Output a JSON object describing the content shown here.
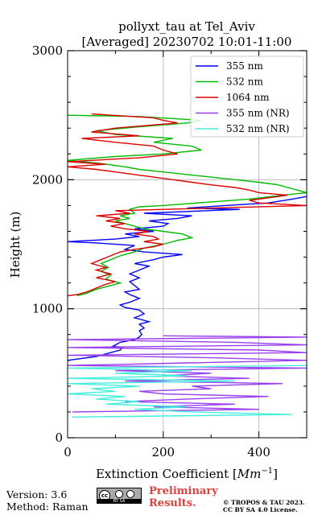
{
  "chart_data": {
    "type": "line",
    "title": [
      "pollyxt_tau at Tel_Aviv",
      "[Averaged] 20230702 10:01-11:00"
    ],
    "xlabel_text": "Extinction Coefficient [",
    "xlabel_unit": "Mm",
    "xlabel_exp": "−1",
    "xlabel_close": "]",
    "ylabel": "Height (m)",
    "xlim": [
      0,
      500
    ],
    "ylim": [
      0,
      3000
    ],
    "x_ticks": [
      "0",
      "200",
      "400"
    ],
    "y_ticks": [
      "0",
      "1000",
      "2000",
      "3000"
    ],
    "x_tick_values": [
      0,
      200,
      400
    ],
    "y_tick_values": [
      0,
      1000,
      2000,
      3000
    ],
    "x_minor_values": [
      100,
      300,
      500
    ],
    "y_minor_values": [
      200,
      400,
      600,
      800,
      1200,
      1400,
      1600,
      1800,
      2200,
      2400,
      2600,
      2800
    ],
    "grid": true,
    "legend_position": "top-right",
    "series": [
      {
        "name": "355 nm",
        "color": "#0000ff",
        "points": [
          [
            0,
            600
          ],
          [
            60,
            630
          ],
          [
            90,
            660
          ],
          [
            110,
            680
          ],
          [
            115,
            700
          ],
          [
            95,
            710
          ],
          [
            110,
            740
          ],
          [
            140,
            760
          ],
          [
            150,
            780
          ],
          [
            155,
            800
          ],
          [
            150,
            830
          ],
          [
            160,
            850
          ],
          [
            150,
            880
          ],
          [
            170,
            900
          ],
          [
            140,
            930
          ],
          [
            160,
            960
          ],
          [
            150,
            990
          ],
          [
            120,
            1010
          ],
          [
            110,
            1030
          ],
          [
            130,
            1050
          ],
          [
            150,
            1080
          ],
          [
            130,
            1110
          ],
          [
            120,
            1130
          ],
          [
            150,
            1150
          ],
          [
            140,
            1180
          ],
          [
            130,
            1210
          ],
          [
            150,
            1240
          ],
          [
            130,
            1270
          ],
          [
            150,
            1300
          ],
          [
            170,
            1330
          ],
          [
            140,
            1350
          ],
          [
            180,
            1380
          ],
          [
            200,
            1400
          ],
          [
            240,
            1420
          ],
          [
            160,
            1440
          ],
          [
            120,
            1460
          ],
          [
            140,
            1490
          ],
          [
            60,
            1510
          ],
          [
            0,
            1520
          ],
          [
            100,
            1540
          ],
          [
            150,
            1560
          ],
          [
            120,
            1580
          ],
          [
            180,
            1600
          ],
          [
            140,
            1620
          ],
          [
            200,
            1640
          ],
          [
            210,
            1660
          ],
          [
            170,
            1680
          ],
          [
            230,
            1700
          ],
          [
            260,
            1720
          ],
          [
            160,
            1740
          ],
          [
            360,
            1770
          ],
          [
            250,
            1780
          ],
          [
            330,
            1800
          ],
          [
            420,
            1820
          ],
          [
            470,
            1850
          ],
          [
            500,
            1870
          ]
        ]
      },
      {
        "name": "532 nm",
        "color": "#00bb00",
        "points": [
          [
            20,
            1100
          ],
          [
            40,
            1120
          ],
          [
            60,
            1150
          ],
          [
            90,
            1180
          ],
          [
            110,
            1200
          ],
          [
            80,
            1230
          ],
          [
            90,
            1260
          ],
          [
            70,
            1290
          ],
          [
            85,
            1320
          ],
          [
            70,
            1350
          ],
          [
            90,
            1380
          ],
          [
            110,
            1410
          ],
          [
            140,
            1440
          ],
          [
            160,
            1470
          ],
          [
            200,
            1500
          ],
          [
            230,
            1530
          ],
          [
            260,
            1550
          ],
          [
            240,
            1580
          ],
          [
            200,
            1600
          ],
          [
            160,
            1620
          ],
          [
            130,
            1650
          ],
          [
            100,
            1680
          ],
          [
            130,
            1700
          ],
          [
            110,
            1720
          ],
          [
            140,
            1740
          ],
          [
            130,
            1770
          ],
          [
            150,
            1790
          ],
          [
            200,
            1800
          ],
          [
            380,
            1850
          ],
          [
            450,
            1880
          ],
          [
            500,
            1900
          ],
          [
            480,
            1920
          ],
          [
            460,
            1940
          ],
          [
            440,
            1960
          ],
          [
            400,
            1980
          ],
          [
            350,
            2000
          ],
          [
            300,
            2020
          ],
          [
            250,
            2040
          ],
          [
            200,
            2060
          ],
          [
            150,
            2080
          ],
          [
            120,
            2100
          ],
          [
            60,
            2130
          ],
          [
            0,
            2150
          ],
          [
            100,
            2180
          ],
          [
            200,
            2200
          ],
          [
            280,
            2230
          ],
          [
            260,
            2260
          ],
          [
            180,
            2290
          ],
          [
            220,
            2320
          ],
          [
            100,
            2350
          ],
          [
            60,
            2380
          ],
          [
            150,
            2410
          ],
          [
            250,
            2440
          ],
          [
            280,
            2460
          ],
          [
            150,
            2490
          ],
          [
            0,
            2500
          ]
        ]
      },
      {
        "name": "1064 nm",
        "color": "#dd0000",
        "points": [
          [
            0,
            1100
          ],
          [
            20,
            1110
          ],
          [
            40,
            1130
          ],
          [
            60,
            1160
          ],
          [
            80,
            1190
          ],
          [
            100,
            1210
          ],
          [
            60,
            1240
          ],
          [
            90,
            1270
          ],
          [
            60,
            1300
          ],
          [
            80,
            1320
          ],
          [
            50,
            1350
          ],
          [
            70,
            1380
          ],
          [
            90,
            1410
          ],
          [
            110,
            1440
          ],
          [
            140,
            1460
          ],
          [
            180,
            1480
          ],
          [
            200,
            1500
          ],
          [
            160,
            1520
          ],
          [
            190,
            1540
          ],
          [
            180,
            1560
          ],
          [
            140,
            1580
          ],
          [
            170,
            1600
          ],
          [
            120,
            1620
          ],
          [
            90,
            1640
          ],
          [
            120,
            1660
          ],
          [
            80,
            1680
          ],
          [
            110,
            1700
          ],
          [
            60,
            1720
          ],
          [
            130,
            1740
          ],
          [
            100,
            1760
          ],
          [
            300,
            1780
          ],
          [
            500,
            1800
          ],
          [
            400,
            1820
          ],
          [
            380,
            1840
          ],
          [
            420,
            1860
          ],
          [
            460,
            1880
          ],
          [
            400,
            1900
          ],
          [
            380,
            1920
          ],
          [
            350,
            1940
          ],
          [
            300,
            1960
          ],
          [
            260,
            1980
          ],
          [
            220,
            2000
          ],
          [
            180,
            2020
          ],
          [
            140,
            2040
          ],
          [
            100,
            2060
          ],
          [
            60,
            2080
          ],
          [
            0,
            2100
          ],
          [
            80,
            2120
          ],
          [
            0,
            2140
          ],
          [
            150,
            2170
          ],
          [
            230,
            2200
          ],
          [
            200,
            2230
          ],
          [
            180,
            2260
          ],
          [
            100,
            2290
          ],
          [
            30,
            2320
          ],
          [
            150,
            2340
          ],
          [
            50,
            2370
          ],
          [
            100,
            2400
          ],
          [
            230,
            2440
          ],
          [
            200,
            2460
          ],
          [
            180,
            2480
          ],
          [
            50,
            2510
          ]
        ]
      },
      {
        "name": "355 nm (NR)",
        "color": "#9a3ff0",
        "points": [
          [
            10,
            200
          ],
          [
            400,
            220
          ],
          [
            180,
            240
          ],
          [
            350,
            260
          ],
          [
            120,
            280
          ],
          [
            250,
            300
          ],
          [
            420,
            320
          ],
          [
            200,
            340
          ],
          [
            150,
            360
          ],
          [
            300,
            380
          ],
          [
            260,
            400
          ],
          [
            450,
            420
          ],
          [
            120,
            440
          ],
          [
            380,
            460
          ],
          [
            200,
            480
          ],
          [
            300,
            500
          ],
          [
            100,
            520
          ],
          [
            500,
            540
          ],
          [
            0,
            560
          ],
          [
            250,
            580
          ],
          [
            500,
            600
          ],
          [
            300,
            620
          ],
          [
            0,
            640
          ],
          [
            500,
            660
          ],
          [
            400,
            680
          ],
          [
            0,
            700
          ],
          [
            500,
            720
          ],
          [
            350,
            740
          ],
          [
            0,
            760
          ],
          [
            500,
            780
          ],
          [
            200,
            790
          ]
        ]
      },
      {
        "name": "532 nm (NR)",
        "color": "#44eedd",
        "points": [
          [
            10,
            160
          ],
          [
            470,
            180
          ],
          [
            260,
            200
          ],
          [
            140,
            220
          ],
          [
            250,
            240
          ],
          [
            80,
            260
          ],
          [
            150,
            280
          ],
          [
            60,
            300
          ],
          [
            120,
            320
          ],
          [
            0,
            340
          ],
          [
            100,
            360
          ],
          [
            50,
            380
          ],
          [
            150,
            400
          ],
          [
            0,
            420
          ],
          [
            350,
            440
          ],
          [
            0,
            460
          ],
          [
            250,
            480
          ],
          [
            100,
            500
          ],
          [
            260,
            520
          ],
          [
            0,
            540
          ],
          [
            500,
            560
          ]
        ]
      }
    ]
  },
  "footer": {
    "version": "Version: 3.6",
    "method": "Method: Raman",
    "license_badge_text": "BY SA",
    "preliminary_line1": "Preliminary",
    "preliminary_line2": "Results.",
    "copyright_line1": "© TROPOS & TAU 2023.",
    "copyright_line2": "CC BY SA 4.0 License."
  }
}
